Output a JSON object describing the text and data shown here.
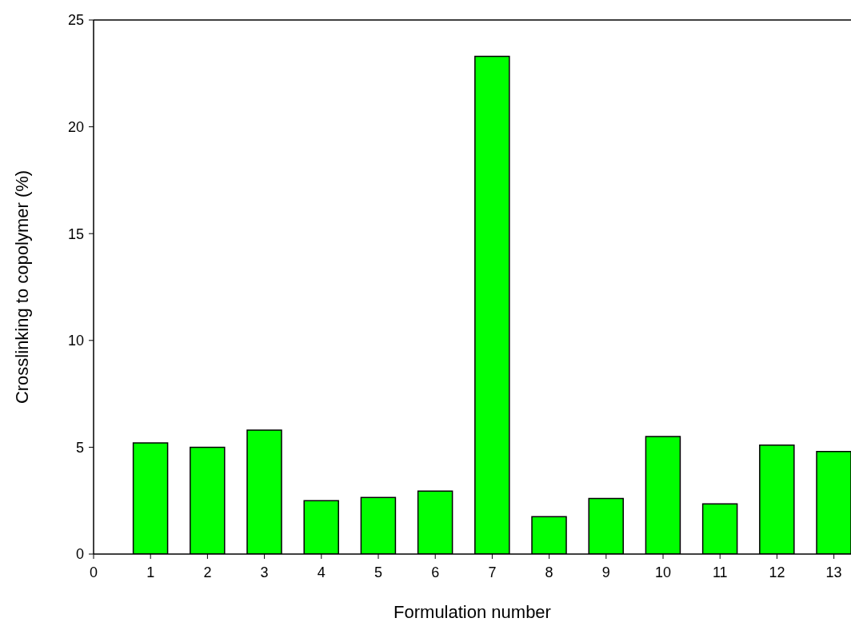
{
  "chart_data": {
    "type": "bar",
    "xlabel": "Formulation number",
    "ylabel": "Crosslinking to copolymer (%)",
    "x": [
      1,
      2,
      3,
      4,
      5,
      6,
      7,
      8,
      9,
      10,
      11,
      12,
      13
    ],
    "values": [
      5.2,
      5.0,
      5.8,
      2.5,
      2.65,
      2.95,
      23.3,
      1.75,
      2.6,
      5.5,
      2.35,
      5.1,
      4.8
    ],
    "color": "#00ff00",
    "xlim": [
      0,
      13.3
    ],
    "xticks": [
      0,
      1,
      2,
      3,
      4,
      5,
      6,
      7,
      8,
      9,
      10,
      11,
      12,
      13
    ],
    "ylim": [
      0,
      25
    ],
    "yticks": [
      0,
      5,
      10,
      15,
      20,
      25
    ],
    "grid": false
  }
}
